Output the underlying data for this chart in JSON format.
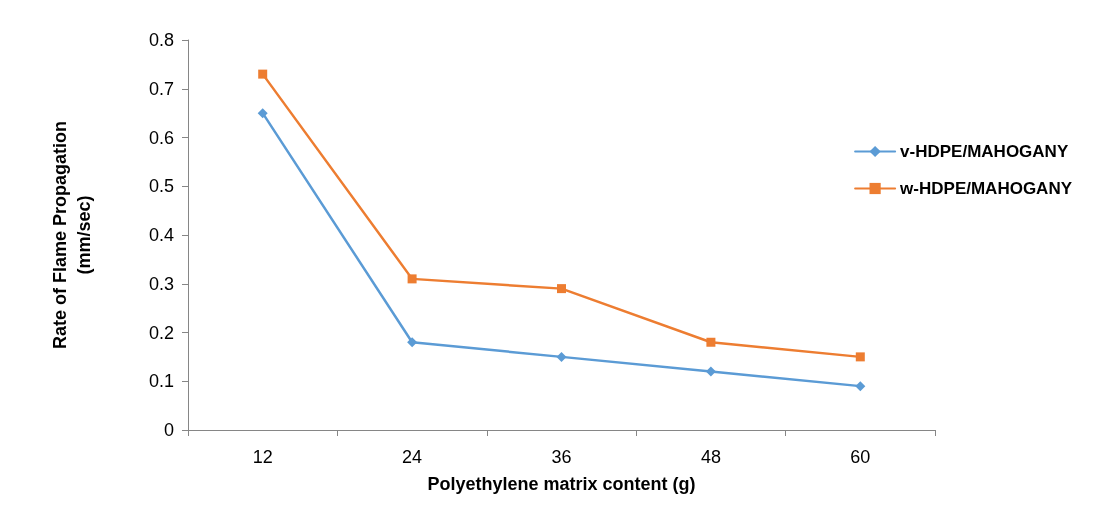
{
  "chart_data": {
    "type": "line",
    "xlabel": "Polyethylene matrix content (g)",
    "ylabel": "Rate of Flame Propagation\n(mm/sec)",
    "categories": [
      "12",
      "24",
      "36",
      "48",
      "60"
    ],
    "series": [
      {
        "name": "v-HDPE/MAHOGANY",
        "color": "#5b9bd5",
        "marker": "diamond",
        "values": [
          0.65,
          0.18,
          0.15,
          0.12,
          0.09
        ]
      },
      {
        "name": "w-HDPE/MAHOGANY",
        "color": "#ed7d31",
        "marker": "square",
        "values": [
          0.73,
          0.31,
          0.29,
          0.18,
          0.15
        ]
      }
    ],
    "ylim": [
      0,
      0.8
    ],
    "yticks": [
      0,
      0.1,
      0.2,
      0.3,
      0.4,
      0.5,
      0.6,
      0.7,
      0.8
    ],
    "grid": false,
    "legend": "right",
    "line_style": "solid"
  }
}
